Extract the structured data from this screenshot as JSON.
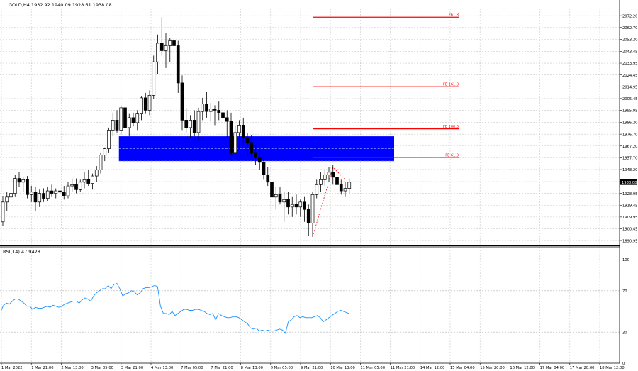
{
  "header": {
    "title": "GOLD,H4  1932.92 1940.09 1928.61 1938.08"
  },
  "rsi_panel": {
    "label": "RSI(14) 47.9428"
  },
  "colors": {
    "grid": "#c8c8c8",
    "candle_border": "#000000",
    "bull_fill": "#ffffff",
    "bear_fill": "#000000",
    "zone_fill": "#0000ff",
    "zone_line": "#7fa0ff",
    "fib": "#ff0000",
    "rsi_line": "#1e90ff",
    "price_tag_bg": "#000000",
    "price_tag_text": "#ffffff"
  },
  "chart_data": [
    {
      "type": "candlestick",
      "symbol": "GOLD",
      "timeframe": "H4",
      "ylim": [
        1887,
        2078
      ],
      "y_ticks": [
        "2072.20",
        "2062.70",
        "2053.20",
        "2043.45",
        "2033.95",
        "2024.45",
        "2014.95",
        "2005.45",
        "1995.95",
        "1986.20",
        "1976.70",
        "1967.20",
        "1957.70",
        "1948.20",
        "1938.45",
        "1928.95",
        "1919.45",
        "1909.95",
        "1900.45",
        "1890.95"
      ],
      "x_ticks": [
        "1 Mar 2022",
        "1 Mar 21:00",
        "2 Mar 13:00",
        "3 Mar 05:00",
        "3 Mar 21:00",
        "4 Mar 13:00",
        "7 Mar 05:00",
        "7 Mar 21:00",
        "8 Mar 13:00",
        "9 Mar 05:00",
        "9 Mar 21:00",
        "10 Mar 13:00",
        "11 Mar 05:00",
        "11 Mar 21:00",
        "14 Mar 12:00",
        "15 Mar 04:00",
        "15 Mar 20:00",
        "16 Mar 12:00",
        "17 Mar 04:00",
        "17 Mar 20:00",
        "18 Mar 12:00"
      ],
      "current_price": "1938.08",
      "candles": [
        [
          1906,
          1927,
          1903,
          1922
        ],
        [
          1922,
          1930,
          1915,
          1926
        ],
        [
          1926,
          1935,
          1920,
          1929
        ],
        [
          1929,
          1944,
          1926,
          1941
        ],
        [
          1941,
          1946,
          1934,
          1938
        ],
        [
          1938,
          1942,
          1930,
          1940
        ],
        [
          1940,
          1943,
          1925,
          1928
        ],
        [
          1928,
          1935,
          1922,
          1930
        ],
        [
          1930,
          1934,
          1915,
          1922
        ],
        [
          1922,
          1932,
          1918,
          1929
        ],
        [
          1929,
          1933,
          1922,
          1925
        ],
        [
          1925,
          1934,
          1923,
          1931
        ],
        [
          1931,
          1936,
          1926,
          1929
        ],
        [
          1929,
          1933,
          1925,
          1931
        ],
        [
          1931,
          1936,
          1928,
          1930
        ],
        [
          1930,
          1935,
          1924,
          1927
        ],
        [
          1927,
          1938,
          1925,
          1935
        ],
        [
          1935,
          1941,
          1930,
          1936
        ],
        [
          1936,
          1941,
          1929,
          1932
        ],
        [
          1932,
          1940,
          1930,
          1938
        ],
        [
          1938,
          1946,
          1933,
          1940
        ],
        [
          1940,
          1948,
          1935,
          1937
        ],
        [
          1937,
          1945,
          1932,
          1943
        ],
        [
          1943,
          1951,
          1938,
          1948
        ],
        [
          1948,
          1962,
          1945,
          1960
        ],
        [
          1960,
          1966,
          1955,
          1965
        ],
        [
          1965,
          1982,
          1962,
          1980
        ],
        [
          1980,
          1994,
          1975,
          1988
        ],
        [
          1988,
          1996,
          1978,
          1980
        ],
        [
          1980,
          2000,
          1976,
          1998
        ],
        [
          1998,
          2000,
          1974,
          1982
        ],
        [
          1982,
          1993,
          1975,
          1990
        ],
        [
          1990,
          1994,
          1983,
          1986
        ],
        [
          1986,
          1996,
          1980,
          1993
        ],
        [
          1993,
          2007,
          1988,
          2006
        ],
        [
          2006,
          2010,
          1993,
          1996
        ],
        [
          1996,
          2012,
          1992,
          2008
        ],
        [
          2008,
          2040,
          2005,
          2035
        ],
        [
          2035,
          2057,
          2025,
          2050
        ],
        [
          2050,
          2071,
          2040,
          2044
        ],
        [
          2044,
          2058,
          2030,
          2048
        ],
        [
          2048,
          2054,
          2035,
          2052
        ],
        [
          2052,
          2060,
          2040,
          2048
        ],
        [
          2048,
          2052,
          2010,
          2018
        ],
        [
          2018,
          2024,
          1980,
          1988
        ],
        [
          1988,
          1998,
          1978,
          1982
        ],
        [
          1982,
          1992,
          1974,
          1988
        ],
        [
          1988,
          1996,
          1975,
          1978
        ],
        [
          1978,
          1998,
          1972,
          1995
        ],
        [
          1995,
          2006,
          1988,
          2001
        ],
        [
          2001,
          2011,
          1990,
          1995
        ],
        [
          1995,
          2002,
          1987,
          1997
        ],
        [
          1997,
          2000,
          1984,
          1996
        ],
        [
          1996,
          2003,
          1988,
          1994
        ],
        [
          1994,
          2001,
          1980,
          1990
        ],
        [
          1990,
          1996,
          1974,
          1987
        ],
        [
          1987,
          1994,
          1960,
          1962
        ],
        [
          1962,
          1984,
          1960,
          1978
        ],
        [
          1978,
          1988,
          1965,
          1984
        ],
        [
          1984,
          1990,
          1968,
          1974
        ],
        [
          1974,
          1978,
          1960,
          1970
        ],
        [
          1970,
          1976,
          1958,
          1962
        ],
        [
          1962,
          1968,
          1952,
          1958
        ],
        [
          1958,
          1964,
          1948,
          1954
        ],
        [
          1954,
          1958,
          1940,
          1944
        ],
        [
          1944,
          1950,
          1935,
          1938
        ],
        [
          1938,
          1942,
          1924,
          1926
        ],
        [
          1926,
          1934,
          1916,
          1928
        ],
        [
          1928,
          1934,
          1920,
          1922
        ],
        [
          1922,
          1930,
          1906,
          1924
        ],
        [
          1924,
          1930,
          1912,
          1918
        ],
        [
          1918,
          1926,
          1910,
          1920
        ],
        [
          1920,
          1928,
          1912,
          1918
        ],
        [
          1918,
          1924,
          1910,
          1922
        ],
        [
          1922,
          1926,
          1906,
          1916
        ],
        [
          1916,
          1920,
          1895,
          1905
        ],
        [
          1905,
          1930,
          1894,
          1928
        ],
        [
          1928,
          1940,
          1925,
          1936
        ],
        [
          1936,
          1946,
          1930,
          1940
        ],
        [
          1940,
          1948,
          1935,
          1944
        ],
        [
          1944,
          1950,
          1938,
          1946
        ],
        [
          1946,
          1952,
          1936,
          1942
        ],
        [
          1942,
          1946,
          1932,
          1936
        ],
        [
          1936,
          1940,
          1928,
          1931
        ],
        [
          1931,
          1938,
          1926,
          1933
        ],
        [
          1933,
          1941,
          1929,
          1938
        ]
      ],
      "zone": {
        "from": 1955,
        "to": 1975,
        "mid": 1965,
        "start_index": 29,
        "end_index": 96
      },
      "fib_levels": [
        {
          "label": "261.8",
          "value": 2071
        },
        {
          "label": "FE 161.8",
          "value": 2015
        },
        {
          "label": "FE 100.0",
          "value": 1981
        },
        {
          "label": "FE 61.8",
          "value": 1958
        }
      ],
      "fib_start_index": 76,
      "fib_end_index": 112,
      "dotted_path": [
        [
          76,
          1894
        ],
        [
          81,
          1950
        ],
        [
          84,
          1940
        ]
      ]
    },
    {
      "type": "line",
      "name": "RSI(14)",
      "ylim": [
        0,
        100
      ],
      "y_ticks": [
        100,
        70,
        30,
        0
      ],
      "values": [
        50,
        56,
        58,
        57,
        60,
        62,
        62,
        60,
        58,
        55,
        55,
        52,
        54,
        53,
        53,
        54,
        55,
        54,
        56,
        55,
        54,
        55,
        57,
        58,
        59,
        60,
        60,
        58,
        61,
        63,
        62,
        60,
        65,
        68,
        70,
        72,
        72,
        75,
        72,
        76,
        77,
        72,
        65,
        67,
        68,
        70,
        69,
        66,
        68,
        72,
        73,
        73,
        74,
        75,
        74,
        55,
        48,
        48,
        47,
        50,
        46,
        48,
        50,
        52,
        52,
        51,
        51,
        52,
        52,
        51,
        50,
        48,
        47,
        48,
        42,
        48,
        46,
        45,
        44,
        44,
        45,
        45,
        44,
        42,
        40,
        38,
        34,
        33,
        34,
        31,
        32,
        31,
        32,
        31,
        31,
        32,
        33,
        32,
        29,
        40,
        42,
        45,
        46,
        44,
        45,
        44,
        44,
        44,
        45,
        46,
        44,
        40,
        42,
        44,
        46,
        48,
        50,
        51,
        50,
        49,
        48
      ]
    }
  ]
}
